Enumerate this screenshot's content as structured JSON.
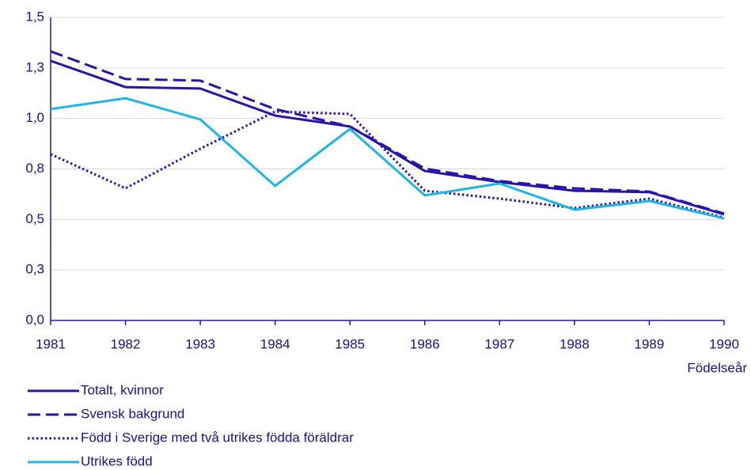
{
  "chart_data": {
    "type": "line",
    "categories": [
      "1981",
      "1982",
      "1983",
      "1984",
      "1985",
      "1986",
      "1987",
      "1988",
      "1989",
      "1990"
    ],
    "x_label": "Födelseår",
    "ylim": [
      0,
      1.5
    ],
    "yticks": [
      {
        "value": 0,
        "label": "0,0"
      },
      {
        "value": 0.25,
        "label": "0,3"
      },
      {
        "value": 0.5,
        "label": "0,5"
      },
      {
        "value": 0.75,
        "label": "0,8"
      },
      {
        "value": 1.0,
        "label": "1,0"
      },
      {
        "value": 1.25,
        "label": "1,3"
      },
      {
        "value": 1.5,
        "label": "1,5"
      }
    ],
    "grid": true,
    "legend": "bottom",
    "series": [
      {
        "name": "Totalt, kvinnor",
        "color": "#2a14a8",
        "style": "solid",
        "values": [
          1.285,
          1.155,
          1.148,
          1.014,
          0.96,
          0.74,
          0.685,
          0.642,
          0.635,
          0.525
        ]
      },
      {
        "name": "Svensk bakgrund",
        "color": "#2a14a8",
        "style": "dashed",
        "values": [
          1.332,
          1.195,
          1.187,
          1.046,
          0.96,
          0.752,
          0.69,
          0.654,
          0.638,
          0.529
        ]
      },
      {
        "name": "Född i Sverige med två utrikes födda föräldrar",
        "color": "#2a14a8",
        "style": "dotted",
        "values": [
          0.823,
          0.654,
          0.85,
          1.034,
          1.022,
          0.642,
          0.603,
          0.556,
          0.603,
          0.509
        ]
      },
      {
        "name": "Utrikes född",
        "color": "#1eb4e6",
        "style": "solid",
        "values": [
          1.046,
          1.1,
          0.995,
          0.666,
          0.948,
          0.619,
          0.678,
          0.548,
          0.591,
          0.505
        ]
      }
    ]
  }
}
